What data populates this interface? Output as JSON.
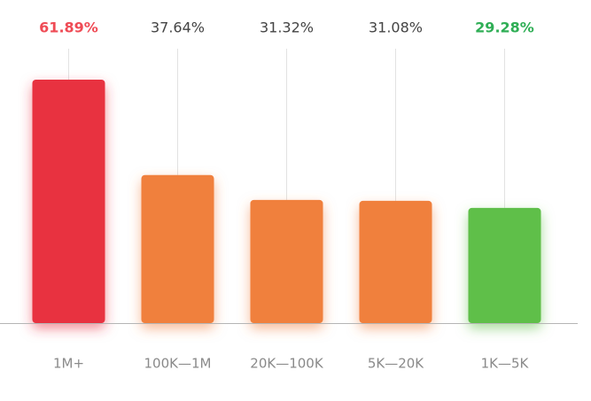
{
  "chart_data": {
    "type": "bar",
    "categories": [
      "1M+",
      "100K—1M",
      "20K—100K",
      "5K—20K",
      "1K—5K"
    ],
    "values": [
      61.89,
      37.64,
      31.32,
      31.08,
      29.28
    ],
    "value_labels": [
      "61.89%",
      "37.64%",
      "31.32%",
      "31.08%",
      "29.28%"
    ],
    "colors": [
      "#e8303f",
      "#f0803c",
      "#f0803c",
      "#f0803c",
      "#5ebf48"
    ],
    "value_label_colors": [
      "#ef4b55",
      "#444444",
      "#444444",
      "#444444",
      "#2fae55"
    ]
  }
}
